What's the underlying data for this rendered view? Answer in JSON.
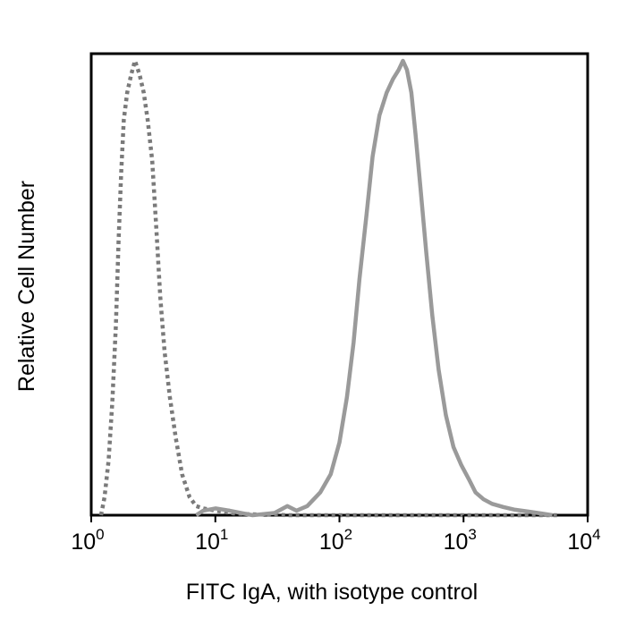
{
  "chart_data": {
    "type": "line",
    "title": "",
    "xlabel": "FITC IgA, with isotype control",
    "ylabel": "Relative Cell Number",
    "xscale": "log",
    "xlim": [
      1,
      10000
    ],
    "ylim": [
      0,
      1
    ],
    "grid": false,
    "legend": "none",
    "xticks": [
      {
        "value": 1,
        "base": "10",
        "exp": "0"
      },
      {
        "value": 10,
        "base": "10",
        "exp": "1"
      },
      {
        "value": 100,
        "base": "10",
        "exp": "2"
      },
      {
        "value": 1000,
        "base": "10",
        "exp": "3"
      },
      {
        "value": 10000,
        "base": "10",
        "exp": "4"
      }
    ],
    "series": [
      {
        "style": "dotted",
        "color": "#7a7a7a",
        "points": [
          [
            1.2,
            0.0
          ],
          [
            1.28,
            0.04
          ],
          [
            1.38,
            0.12
          ],
          [
            1.48,
            0.25
          ],
          [
            1.58,
            0.42
          ],
          [
            1.66,
            0.6
          ],
          [
            1.74,
            0.75
          ],
          [
            1.83,
            0.87
          ],
          [
            1.95,
            0.93
          ],
          [
            2.1,
            0.97
          ],
          [
            2.25,
            1.0
          ],
          [
            2.45,
            0.97
          ],
          [
            2.65,
            0.93
          ],
          [
            2.85,
            0.87
          ],
          [
            3.1,
            0.78
          ],
          [
            3.35,
            0.63
          ],
          [
            3.6,
            0.48
          ],
          [
            3.9,
            0.36
          ],
          [
            4.3,
            0.26
          ],
          [
            4.8,
            0.17
          ],
          [
            5.4,
            0.09
          ],
          [
            6.2,
            0.04
          ],
          [
            7.0,
            0.02
          ],
          [
            8.0,
            0.015
          ],
          [
            10.0,
            0.01
          ],
          [
            14.0,
            0.004
          ],
          [
            20.0,
            0.002
          ],
          [
            40.0,
            0.0
          ],
          [
            100.0,
            0.0
          ],
          [
            1000.0,
            0.0
          ],
          [
            6000.0,
            0.0
          ]
        ]
      },
      {
        "style": "solid",
        "color": "#9a9a9a",
        "points": [
          [
            7.0,
            0.0
          ],
          [
            8.0,
            0.01
          ],
          [
            10.0,
            0.015
          ],
          [
            13.0,
            0.01
          ],
          [
            16.0,
            0.005
          ],
          [
            20.0,
            0.0
          ],
          [
            30.0,
            0.005
          ],
          [
            38.0,
            0.02
          ],
          [
            45.0,
            0.01
          ],
          [
            55.0,
            0.02
          ],
          [
            70.0,
            0.05
          ],
          [
            85.0,
            0.09
          ],
          [
            100.0,
            0.16
          ],
          [
            115.0,
            0.26
          ],
          [
            130.0,
            0.38
          ],
          [
            145.0,
            0.52
          ],
          [
            165.0,
            0.66
          ],
          [
            185.0,
            0.79
          ],
          [
            210.0,
            0.88
          ],
          [
            240.0,
            0.93
          ],
          [
            270.0,
            0.96
          ],
          [
            300.0,
            0.98
          ],
          [
            325.0,
            1.0
          ],
          [
            350.0,
            0.98
          ],
          [
            380.0,
            0.93
          ],
          [
            410.0,
            0.84
          ],
          [
            450.0,
            0.72
          ],
          [
            500.0,
            0.58
          ],
          [
            560.0,
            0.44
          ],
          [
            630.0,
            0.32
          ],
          [
            720.0,
            0.22
          ],
          [
            830.0,
            0.15
          ],
          [
            960.0,
            0.11
          ],
          [
            1100.0,
            0.08
          ],
          [
            1250.0,
            0.05
          ],
          [
            1450.0,
            0.035
          ],
          [
            1700.0,
            0.025
          ],
          [
            2100.0,
            0.018
          ],
          [
            2600.0,
            0.012
          ],
          [
            3300.0,
            0.008
          ],
          [
            4200.0,
            0.004
          ],
          [
            5200.0,
            0.0
          ]
        ]
      }
    ]
  }
}
